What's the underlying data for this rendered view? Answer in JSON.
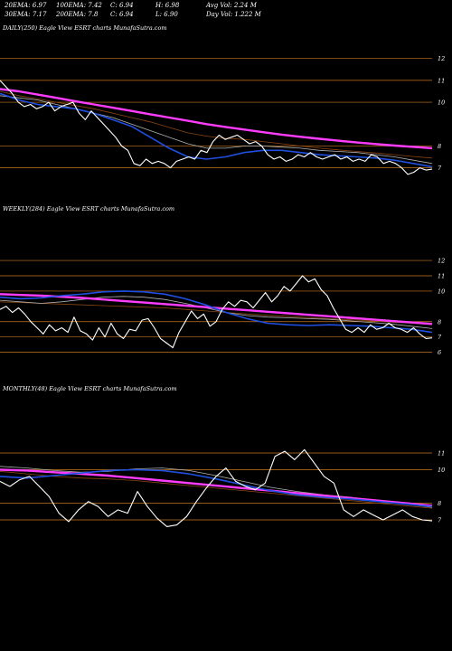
{
  "header": {
    "row1": [
      {
        "label": "20EMA: 6.97"
      },
      {
        "label": "100EMA: 7.42"
      },
      {
        "label": "C: 6.94"
      },
      {
        "label": "H: 6.98"
      },
      {
        "label": "Avg Vol: 2.24  M"
      }
    ],
    "row2": [
      {
        "label": "30EMA: 7.17"
      },
      {
        "label": "200EMA: 7.8"
      },
      {
        "label": "C: 6.94"
      },
      {
        "label": "L: 6.90"
      },
      {
        "label": "Day Vol: 1.222  M"
      }
    ]
  },
  "colors": {
    "background": "#000000",
    "price": "#ffffff",
    "ema_fast": "#1f4fe0",
    "ema_slow": "#ff3cff",
    "grid": "#c8781e",
    "ema_brown": "#8b4513",
    "ema_gray": "#b0b0b0"
  },
  "chart_data": [
    {
      "type": "line",
      "title": "DAILY(250) Eagle  View  ESRT charts MunafaSutra.com",
      "y_ticks": [
        12,
        11,
        10,
        8,
        7
      ],
      "ylim": [
        6.2,
        12.4
      ],
      "series": [
        {
          "id": "price",
          "values": [
            11.0,
            10.7,
            10.4,
            10.0,
            9.8,
            9.9,
            9.7,
            9.8,
            10.0,
            9.6,
            9.8,
            9.9,
            10.0,
            9.5,
            9.2,
            9.6,
            9.3,
            9.0,
            8.7,
            8.4,
            8.0,
            7.8,
            7.2,
            7.1,
            7.4,
            7.2,
            7.3,
            7.2,
            7.0,
            7.3,
            7.4,
            7.5,
            7.4,
            7.8,
            7.7,
            8.2,
            8.5,
            8.3,
            8.4,
            8.5,
            8.3,
            8.1,
            8.2,
            8.0,
            7.6,
            7.4,
            7.5,
            7.3,
            7.4,
            7.6,
            7.5,
            7.7,
            7.5,
            7.4,
            7.5,
            7.6,
            7.4,
            7.5,
            7.3,
            7.4,
            7.3,
            7.6,
            7.5,
            7.2,
            7.3,
            7.2,
            7.0,
            6.7,
            6.8,
            7.0,
            6.9,
            6.94
          ]
        },
        {
          "id": "ema_slow",
          "values": [
            10.6,
            10.5,
            10.35,
            10.2,
            10.05,
            9.9,
            9.75,
            9.6,
            9.45,
            9.3,
            9.15,
            9.0,
            8.87,
            8.75,
            8.63,
            8.52,
            8.42,
            8.33,
            8.24,
            8.16,
            8.09,
            8.02,
            7.96,
            7.9
          ]
        },
        {
          "id": "ema_fast",
          "values": [
            10.4,
            10.1,
            9.9,
            9.8,
            9.7,
            9.5,
            9.2,
            8.9,
            8.4,
            7.9,
            7.5,
            7.4,
            7.5,
            7.7,
            7.8,
            7.8,
            7.7,
            7.6,
            7.55,
            7.5,
            7.45,
            7.35,
            7.2,
            7.05
          ]
        },
        {
          "id": "ema_gray",
          "values": [
            10.3,
            10.2,
            10.1,
            9.9,
            9.7,
            9.5,
            9.3,
            9.0,
            8.7,
            8.4,
            8.1,
            7.9,
            7.9,
            8.0,
            8.0,
            7.95,
            7.9,
            7.8,
            7.75,
            7.7,
            7.6,
            7.5,
            7.35,
            7.2
          ]
        },
        {
          "id": "ema_brown",
          "values": [
            10.5,
            10.3,
            10.15,
            10.0,
            9.85,
            9.7,
            9.5,
            9.3,
            9.1,
            8.85,
            8.6,
            8.45,
            8.35,
            8.3,
            8.2,
            8.1,
            8.0,
            7.9,
            7.82,
            7.75,
            7.68,
            7.6,
            7.52,
            7.45
          ]
        }
      ]
    },
    {
      "type": "line",
      "title": "WEEKLY(284) Eagle  View  ESRT charts MunafaSutra.com",
      "y_ticks": [
        12,
        11,
        10,
        8,
        7,
        6
      ],
      "ylim": [
        5.8,
        12.3
      ],
      "series": [
        {
          "id": "price",
          "values": [
            8.8,
            9.0,
            8.6,
            8.9,
            8.5,
            8.0,
            7.6,
            7.2,
            7.8,
            7.4,
            7.6,
            7.3,
            8.3,
            7.4,
            7.2,
            6.8,
            7.6,
            7.0,
            7.9,
            7.2,
            6.9,
            7.5,
            7.4,
            8.1,
            8.2,
            7.6,
            6.9,
            6.6,
            6.3,
            7.3,
            8.0,
            8.7,
            8.2,
            8.5,
            7.7,
            8.0,
            8.8,
            9.3,
            9.0,
            9.4,
            9.3,
            8.9,
            9.4,
            9.9,
            9.3,
            9.7,
            10.3,
            10.0,
            10.5,
            11.0,
            10.6,
            10.8,
            10.1,
            9.7,
            8.9,
            8.2,
            7.5,
            7.3,
            7.6,
            7.3,
            7.8,
            7.5,
            7.6,
            7.9,
            7.6,
            7.5,
            7.3,
            7.6,
            7.2,
            6.9,
            6.94
          ]
        },
        {
          "id": "ema_slow",
          "values": [
            9.8,
            9.75,
            9.7,
            9.63,
            9.55,
            9.45,
            9.35,
            9.25,
            9.15,
            9.05,
            8.95,
            8.85,
            8.75,
            8.65,
            8.55,
            8.45,
            8.35,
            8.25,
            8.15,
            8.05,
            7.95,
            7.85
          ]
        },
        {
          "id": "ema_fast",
          "values": [
            9.6,
            9.5,
            9.55,
            9.7,
            9.8,
            9.95,
            10.0,
            9.95,
            9.8,
            9.5,
            9.1,
            8.6,
            8.2,
            7.9,
            7.8,
            7.75,
            7.8,
            7.75,
            7.7,
            7.6,
            7.5,
            7.3
          ]
        },
        {
          "id": "ema_gray",
          "values": [
            9.4,
            9.3,
            9.2,
            9.3,
            9.45,
            9.6,
            9.65,
            9.6,
            9.45,
            9.2,
            8.9,
            8.6,
            8.4,
            8.3,
            8.25,
            8.2,
            8.15,
            8.05,
            7.95,
            7.85,
            7.7,
            7.55
          ]
        },
        {
          "id": "ema_brown",
          "values": [
            9.3,
            9.25,
            9.2,
            9.15,
            9.1,
            9.05,
            9.0,
            8.95,
            8.9,
            8.8,
            8.7,
            8.6,
            8.5,
            8.42,
            8.35,
            8.27,
            8.2,
            8.12,
            8.05,
            7.97,
            7.9,
            7.82
          ]
        }
      ]
    },
    {
      "type": "line",
      "title": "MONTHLY(48) Eagle  View  ESRT charts MunafaSutra.com",
      "y_ticks": [
        11,
        10,
        8,
        7
      ],
      "ylim": [
        6.3,
        11.7
      ],
      "series": [
        {
          "id": "price",
          "values": [
            9.3,
            9.0,
            9.4,
            9.6,
            9.0,
            8.4,
            7.4,
            6.9,
            7.6,
            8.1,
            7.8,
            7.2,
            7.6,
            7.4,
            8.7,
            7.8,
            7.1,
            6.6,
            6.7,
            7.2,
            8.1,
            8.9,
            9.6,
            10.1,
            9.3,
            9.0,
            8.8,
            9.2,
            10.8,
            11.1,
            10.6,
            11.2,
            10.4,
            9.6,
            9.2,
            7.6,
            7.2,
            7.6,
            7.3,
            7.0,
            7.3,
            7.6,
            7.2,
            7.0,
            6.94
          ]
        },
        {
          "id": "ema_slow",
          "values": [
            10.0,
            9.95,
            9.85,
            9.75,
            9.65,
            9.5,
            9.35,
            9.2,
            9.05,
            8.9,
            8.75,
            8.6,
            8.45,
            8.3,
            8.15,
            8.0,
            7.85
          ]
        },
        {
          "id": "ema_fast",
          "values": [
            9.6,
            9.5,
            9.65,
            9.8,
            9.95,
            10.0,
            9.95,
            9.75,
            9.45,
            9.1,
            8.75,
            8.5,
            8.35,
            8.25,
            8.1,
            7.95,
            7.8
          ]
        },
        {
          "id": "ema_gray",
          "values": [
            10.2,
            10.1,
            9.95,
            9.85,
            9.9,
            10.05,
            10.1,
            9.95,
            9.65,
            9.3,
            8.95,
            8.7,
            8.5,
            8.35,
            8.15,
            7.95,
            7.75
          ]
        },
        {
          "id": "ema_brown",
          "values": [
            9.9,
            9.75,
            9.6,
            9.5,
            9.45,
            9.35,
            9.2,
            9.05,
            8.9,
            8.75,
            8.6,
            8.45,
            8.3,
            8.15,
            8.0,
            7.85,
            7.7
          ]
        }
      ]
    }
  ]
}
